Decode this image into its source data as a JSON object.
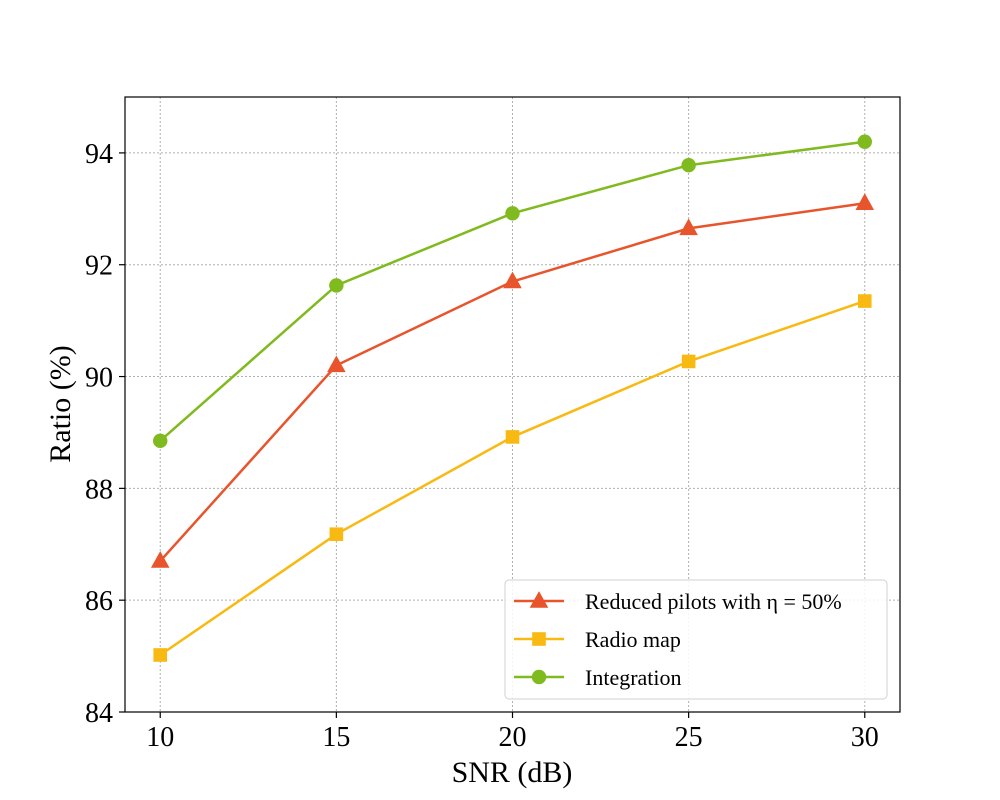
{
  "chart_data": {
    "type": "line",
    "xlabel": "SNR (dB)",
    "ylabel": "Ratio (%)",
    "x": [
      10,
      15,
      20,
      25,
      30
    ],
    "xlim": [
      9,
      31
    ],
    "ylim": [
      84,
      95
    ],
    "xticks": [
      10,
      15,
      20,
      25,
      30
    ],
    "yticks": [
      84,
      86,
      88,
      90,
      92,
      94
    ],
    "grid": true,
    "legend_position": "lower-right",
    "series": [
      {
        "name": "Reduced pilots with η = 50%",
        "marker": "triangle",
        "color": "#e8542b",
        "values": [
          86.7,
          90.2,
          91.7,
          92.65,
          93.1
        ]
      },
      {
        "name": "Radio map",
        "marker": "square",
        "color": "#f8b912",
        "values": [
          85.02,
          87.18,
          88.92,
          90.27,
          91.35
        ]
      },
      {
        "name": "Integration",
        "marker": "circle",
        "color": "#7fba1e",
        "values": [
          88.85,
          91.63,
          92.92,
          93.78,
          94.2
        ]
      }
    ]
  }
}
